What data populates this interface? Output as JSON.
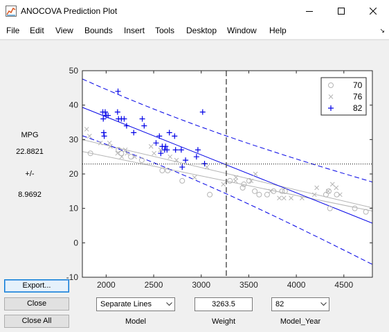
{
  "window": {
    "title": "ANOCOVA Prediction Plot",
    "icon": "matlab-figure-icon",
    "controls": [
      "minimize-icon",
      "maximize-icon",
      "close-icon"
    ]
  },
  "menu": {
    "items": [
      "File",
      "Edit",
      "View",
      "Bounds",
      "Insert",
      "Tools",
      "Desktop",
      "Window",
      "Help"
    ],
    "dock_icon": "dock-arrow-icon"
  },
  "sidebar": {
    "response_name": "MPG",
    "predicted_value": "22.8821",
    "plusminus": "+/-",
    "interval_halfwidth": "8.9692"
  },
  "buttons": {
    "export": "Export...",
    "close": "Close",
    "close_all": "Close All"
  },
  "controls": {
    "model_select": "Separate Lines",
    "model_label": "Model",
    "weight_value": "3263.5",
    "weight_label": "Weight",
    "group_select": "82",
    "group_label": "Model_Year"
  },
  "chart_data": {
    "type": "scatter",
    "xlim": [
      1750,
      4800
    ],
    "ylim": [
      -10,
      50
    ],
    "xticks": [
      2000,
      2500,
      3000,
      3500,
      4000,
      4500
    ],
    "yticks": [
      -10,
      0,
      10,
      20,
      30,
      40,
      50
    ],
    "grid": false,
    "legend_position": "top-right",
    "crosshair": {
      "x": 3263.5,
      "y": 22.8821
    },
    "colors": {
      "70": "#b4b4b4",
      "76": "#b4b4b4",
      "82": "#0000e6",
      "axes": "#262626",
      "crosshair": "#555555"
    },
    "series": [
      {
        "name": "70",
        "marker": "circle",
        "points": [
          [
            1835,
            26
          ],
          [
            2130,
            27
          ],
          [
            2160,
            26
          ],
          [
            2260,
            25
          ],
          [
            2375,
            24
          ],
          [
            2590,
            21
          ],
          [
            2648,
            21
          ],
          [
            2800,
            18
          ],
          [
            3090,
            14
          ],
          [
            3302,
            18
          ],
          [
            3436,
            16
          ],
          [
            3449,
            17
          ],
          [
            3504,
            18
          ],
          [
            3563,
            15
          ],
          [
            3609,
            14
          ],
          [
            3693,
            14
          ],
          [
            3761,
            15
          ],
          [
            3850,
            15
          ],
          [
            3881,
            15
          ],
          [
            4312,
            14
          ],
          [
            4341,
            15
          ],
          [
            4354,
            10
          ],
          [
            4425,
            14
          ],
          [
            4615,
            10
          ],
          [
            4732,
            9
          ]
        ]
      },
      {
        "name": "76",
        "marker": "x",
        "points": [
          [
            1795,
            33
          ],
          [
            1825,
            31
          ],
          [
            1940,
            29
          ],
          [
            2035,
            29
          ],
          [
            2045,
            28
          ],
          [
            2120,
            26
          ],
          [
            2164,
            25
          ],
          [
            2202,
            27
          ],
          [
            2220,
            26
          ],
          [
            2300,
            25
          ],
          [
            2472,
            28
          ],
          [
            2504,
            26
          ],
          [
            2572,
            27
          ],
          [
            2672,
            25
          ],
          [
            2740,
            24
          ],
          [
            2930,
            19
          ],
          [
            3060,
            22
          ],
          [
            3233,
            17
          ],
          [
            3360,
            18
          ],
          [
            3365,
            19
          ],
          [
            3525,
            18
          ],
          [
            3570,
            20
          ],
          [
            3730,
            15
          ],
          [
            3821,
            13
          ],
          [
            3870,
            13
          ],
          [
            3945,
            13
          ],
          [
            4060,
            13
          ],
          [
            4190,
            14
          ],
          [
            4215,
            16
          ],
          [
            4335,
            15
          ],
          [
            4380,
            17
          ],
          [
            4420,
            16
          ],
          [
            4460,
            14
          ]
        ]
      },
      {
        "name": "82",
        "marker": "plus",
        "points": [
          [
            1965,
            38
          ],
          [
            1970,
            36
          ],
          [
            1975,
            32
          ],
          [
            1980,
            31
          ],
          [
            1990,
            38
          ],
          [
            2000,
            37
          ],
          [
            2020,
            37
          ],
          [
            2120,
            38
          ],
          [
            2125,
            44
          ],
          [
            2130,
            36
          ],
          [
            2160,
            36
          ],
          [
            2190,
            36
          ],
          [
            2215,
            34
          ],
          [
            2290,
            32
          ],
          [
            2380,
            36
          ],
          [
            2400,
            34
          ],
          [
            2525,
            29
          ],
          [
            2560,
            31
          ],
          [
            2575,
            26
          ],
          [
            2590,
            28
          ],
          [
            2615,
            27
          ],
          [
            2625,
            28
          ],
          [
            2640,
            27
          ],
          [
            2665,
            32
          ],
          [
            2720,
            31
          ],
          [
            2730,
            27
          ],
          [
            2790,
            27
          ],
          [
            2800,
            22
          ],
          [
            2835,
            24
          ],
          [
            2950,
            25
          ],
          [
            2965,
            27
          ],
          [
            3015,
            38
          ],
          [
            3035,
            23
          ]
        ]
      }
    ]
  }
}
